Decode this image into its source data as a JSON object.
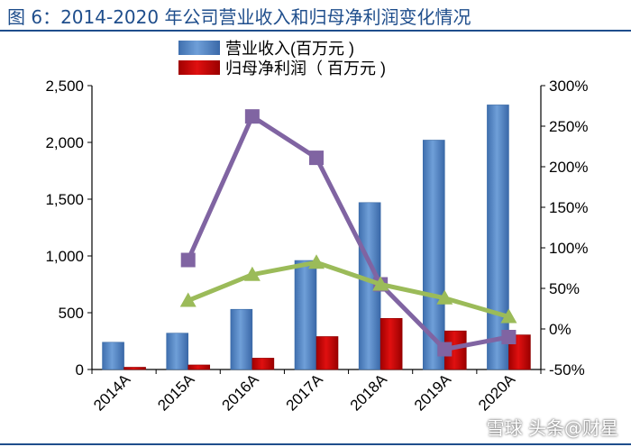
{
  "header": {
    "title": "图 6：2014-2020 年公司营业收入和归母净利润变化情况"
  },
  "watermark": "雪球 头条@财星",
  "colors": {
    "revenue": "#4f81bd",
    "profit": "#c00000",
    "line_purple": "#8064a2",
    "line_green": "#9bbb59",
    "title": "#1f4e8c"
  },
  "chart_data": {
    "type": "bar",
    "categories": [
      "2014A",
      "2015A",
      "2016A",
      "2017A",
      "2018A",
      "2019A",
      "2020A"
    ],
    "series": [
      {
        "name": "营业收入(百万元 )",
        "kind": "bar",
        "axis": "left",
        "color": "#4f81bd",
        "values": [
          240,
          320,
          530,
          960,
          1470,
          2020,
          2330
        ]
      },
      {
        "name": "归母净利润（ 百万元 )",
        "kind": "bar",
        "axis": "left",
        "color": "#c00000",
        "values": [
          20,
          40,
          100,
          290,
          450,
          340,
          305
        ]
      },
      {
        "kind": "line",
        "axis": "right",
        "color": "#8064a2",
        "values": [
          null,
          85,
          262,
          211,
          55,
          -25,
          -10
        ]
      },
      {
        "kind": "line",
        "axis": "right",
        "color": "#9bbb59",
        "values": [
          null,
          35,
          67,
          82,
          55,
          38,
          15
        ]
      }
    ],
    "y_left": {
      "ylim": [
        0,
        2500
      ],
      "ticks": [
        0,
        500,
        1000,
        1500,
        2000,
        2500
      ],
      "tick_labels": [
        "0",
        "500",
        "1,000",
        "1,500",
        "2,000",
        "2,500"
      ]
    },
    "y_right": {
      "ylim": [
        -50,
        300
      ],
      "ticks": [
        -50,
        0,
        50,
        100,
        150,
        200,
        250,
        300
      ],
      "tick_labels": [
        "-50%",
        "0%",
        "50%",
        "100%",
        "150%",
        "200%",
        "250%",
        "300%"
      ]
    },
    "legend_placement": "top-center",
    "grid": false
  }
}
